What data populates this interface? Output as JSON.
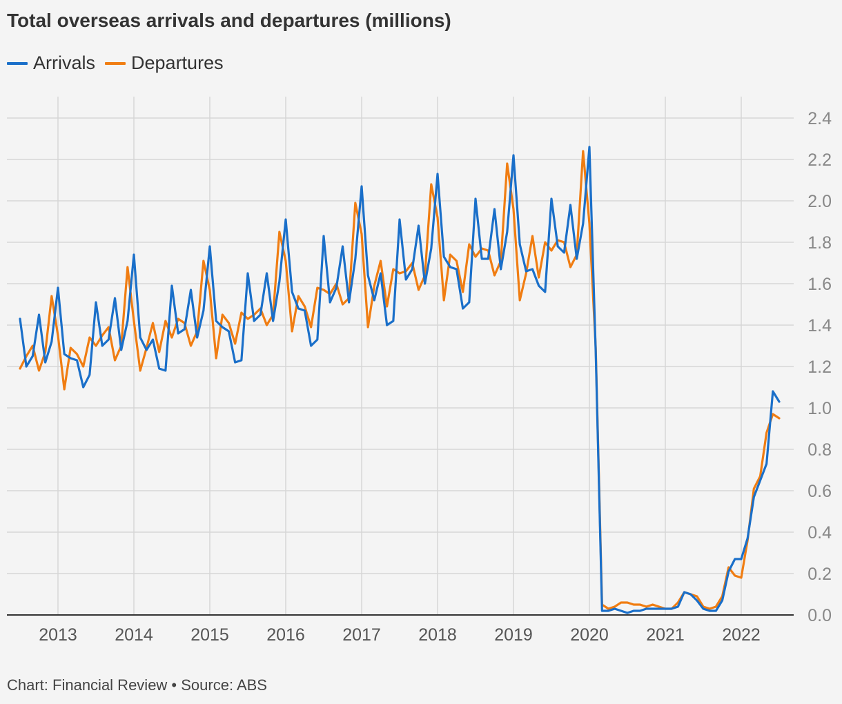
{
  "colors": {
    "arrivals": "#1a6fc9",
    "departures": "#f07d12",
    "grid": "#d6d6d6",
    "axis": "#333333",
    "tick": "#888888"
  },
  "footer": "Chart: Financial Review • Source: ABS",
  "chart_data": {
    "type": "line",
    "title": "Total overseas arrivals and departures (millions)",
    "xlabel": "",
    "ylabel": "",
    "ylim": [
      0,
      2.4
    ],
    "yticks": [
      "0.0",
      "0.2",
      "0.4",
      "0.6",
      "0.8",
      "1.0",
      "1.2",
      "1.4",
      "1.6",
      "1.8",
      "2.0",
      "2.2",
      "2.4"
    ],
    "xticks": [
      "2013",
      "2014",
      "2015",
      "2016",
      "2017",
      "2018",
      "2019",
      "2020",
      "2021",
      "2022"
    ],
    "y_axis_side": "right",
    "grid": true,
    "legend": "top-left",
    "start": "2012-07",
    "series": [
      {
        "name": "Arrivals",
        "values": [
          1.43,
          1.2,
          1.25,
          1.45,
          1.22,
          1.32,
          1.58,
          1.26,
          1.24,
          1.23,
          1.1,
          1.16,
          1.51,
          1.3,
          1.33,
          1.53,
          1.28,
          1.42,
          1.74,
          1.34,
          1.28,
          1.33,
          1.19,
          1.18,
          1.59,
          1.36,
          1.38,
          1.57,
          1.34,
          1.47,
          1.78,
          1.42,
          1.39,
          1.37,
          1.22,
          1.23,
          1.65,
          1.42,
          1.45,
          1.65,
          1.42,
          1.61,
          1.91,
          1.56,
          1.48,
          1.47,
          1.3,
          1.33,
          1.83,
          1.51,
          1.58,
          1.78,
          1.51,
          1.72,
          2.07,
          1.64,
          1.52,
          1.65,
          1.4,
          1.42,
          1.91,
          1.62,
          1.67,
          1.88,
          1.6,
          1.77,
          2.13,
          1.73,
          1.68,
          1.67,
          1.48,
          1.51,
          2.01,
          1.72,
          1.72,
          1.96,
          1.67,
          1.85,
          2.22,
          1.79,
          1.66,
          1.67,
          1.59,
          1.56,
          2.01,
          1.78,
          1.75,
          1.98,
          1.72,
          1.89,
          2.26,
          1.27,
          0.02,
          0.02,
          0.03,
          0.02,
          0.01,
          0.02,
          0.02,
          0.03,
          0.03,
          0.03,
          0.03,
          0.03,
          0.04,
          0.11,
          0.1,
          0.07,
          0.03,
          0.02,
          0.02,
          0.07,
          0.21,
          0.27,
          0.27,
          0.37,
          0.57,
          0.65,
          0.73,
          1.08,
          1.03
        ]
      },
      {
        "name": "Departures",
        "values": [
          1.19,
          1.25,
          1.3,
          1.18,
          1.27,
          1.54,
          1.35,
          1.09,
          1.29,
          1.26,
          1.2,
          1.34,
          1.3,
          1.35,
          1.39,
          1.23,
          1.3,
          1.68,
          1.42,
          1.18,
          1.29,
          1.41,
          1.27,
          1.42,
          1.34,
          1.43,
          1.41,
          1.3,
          1.37,
          1.71,
          1.57,
          1.24,
          1.45,
          1.41,
          1.31,
          1.46,
          1.43,
          1.45,
          1.48,
          1.4,
          1.45,
          1.85,
          1.71,
          1.37,
          1.54,
          1.49,
          1.39,
          1.58,
          1.57,
          1.55,
          1.6,
          1.5,
          1.53,
          1.99,
          1.84,
          1.39,
          1.59,
          1.71,
          1.49,
          1.67,
          1.65,
          1.66,
          1.7,
          1.57,
          1.64,
          2.08,
          1.92,
          1.52,
          1.74,
          1.71,
          1.56,
          1.79,
          1.73,
          1.77,
          1.76,
          1.64,
          1.71,
          2.18,
          1.96,
          1.52,
          1.65,
          1.83,
          1.63,
          1.8,
          1.76,
          1.81,
          1.8,
          1.68,
          1.74,
          2.24,
          1.89,
          1.29,
          0.05,
          0.03,
          0.04,
          0.06,
          0.06,
          0.05,
          0.05,
          0.04,
          0.05,
          0.04,
          0.03,
          0.03,
          0.06,
          0.11,
          0.1,
          0.09,
          0.04,
          0.03,
          0.04,
          0.09,
          0.23,
          0.19,
          0.18,
          0.36,
          0.61,
          0.67,
          0.88,
          0.97,
          0.95
        ]
      }
    ]
  }
}
